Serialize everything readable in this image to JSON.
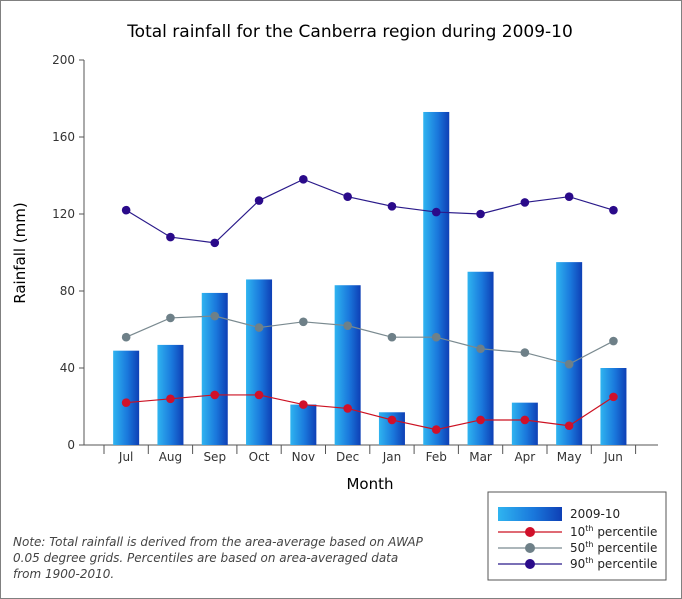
{
  "chart_data": {
    "type": "bar",
    "title": "Total rainfall for the Canberra region during 2009-10",
    "xlabel": "Month",
    "ylabel": "Rainfall (mm)",
    "ylim": [
      0,
      200
    ],
    "yticks": [
      0,
      40,
      80,
      120,
      160,
      200
    ],
    "categories": [
      "Jul",
      "Aug",
      "Sep",
      "Oct",
      "Nov",
      "Dec",
      "Jan",
      "Feb",
      "Mar",
      "Apr",
      "May",
      "Jun"
    ],
    "bars": {
      "name": "2009-10",
      "values": [
        49,
        52,
        79,
        86,
        21,
        83,
        17,
        173,
        90,
        22,
        95,
        40
      ],
      "color": "#1a6fd4"
    },
    "lines": [
      {
        "name_base": "10",
        "name_sup": "th",
        "name_rest": " percentile",
        "color": "#cc1122",
        "marker_color": "#d0102a",
        "values": [
          22,
          24,
          26,
          26,
          21,
          19,
          13,
          8,
          13,
          13,
          10,
          25
        ]
      },
      {
        "name_base": "50",
        "name_sup": "th",
        "name_rest": " percentile",
        "color": "#7a8a90",
        "marker_color": "#6e8088",
        "values": [
          56,
          66,
          67,
          61,
          64,
          62,
          56,
          56,
          50,
          48,
          42,
          54
        ]
      },
      {
        "name_base": "90",
        "name_sup": "th",
        "name_rest": " percentile",
        "color": "#2a1a8a",
        "marker_color": "#2a0a8a",
        "values": [
          122,
          108,
          105,
          127,
          138,
          129,
          124,
          121,
          120,
          126,
          129,
          122
        ]
      }
    ],
    "legend_position": "bottom-right",
    "grid": false
  },
  "note": "Note: Total rainfall is derived from the area-average based on AWAP 0.05 degree grids. Percentiles are based on area-averaged data from 1900-2010."
}
